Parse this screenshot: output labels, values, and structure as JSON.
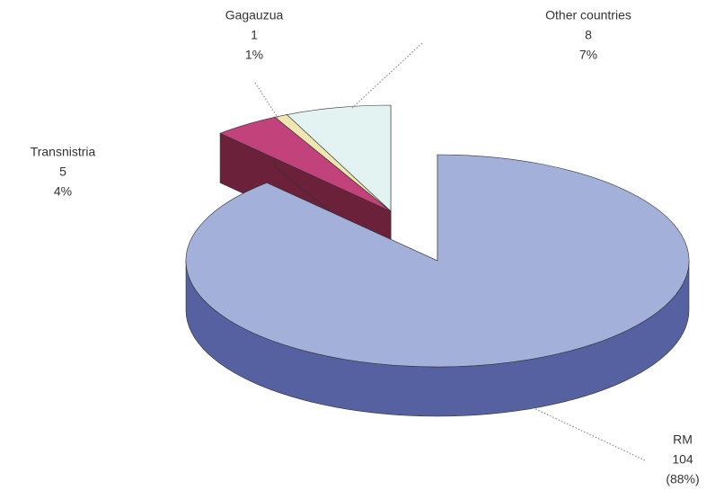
{
  "chart_data": {
    "type": "pie",
    "categories": [
      "RM",
      "Transnistria",
      "Gagauzua",
      "Other countries"
    ],
    "values": [
      104,
      5,
      1,
      8
    ],
    "value_labels": [
      "(88%)",
      "4%",
      "1%",
      "7%"
    ],
    "colors": [
      "#a3b1da",
      "#c2427c",
      "#efe6b2",
      "#e2f3f2"
    ],
    "side_colors": [
      "#5561a0",
      "#6b2139",
      "#a49a62",
      "#6c9a94"
    ]
  }
}
